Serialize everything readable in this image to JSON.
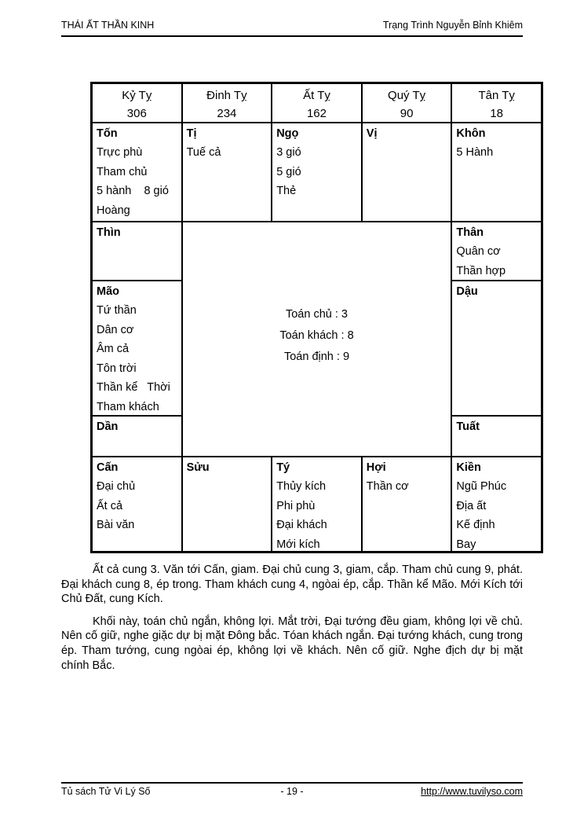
{
  "header": {
    "left": "THÁI ẤT THẦN KINH",
    "right": "Trạng Trình Nguyễn Bỉnh Khiêm"
  },
  "year_row": [
    {
      "name": "Kỷ Tỵ",
      "value": "306"
    },
    {
      "name": "Đinh Tỵ",
      "value": "234"
    },
    {
      "name": "Ất Tỵ",
      "value": "162"
    },
    {
      "name": "Quý Tỵ",
      "value": "90"
    },
    {
      "name": "Tân Tỵ",
      "value": "18"
    }
  ],
  "palaces": {
    "ton": {
      "label": "Tốn",
      "lines": [
        "Trực phù",
        "Tham chủ",
        "5 hành    8 gió",
        "Hoàng"
      ]
    },
    "ti": {
      "label": "Tị",
      "lines": [
        "Tuế cả"
      ]
    },
    "ngo": {
      "label": "Ngọ",
      "lines": [
        "3 gió",
        "5 gió",
        "Thẻ"
      ]
    },
    "vi": {
      "label": "Vị",
      "lines": []
    },
    "khon": {
      "label": "Khôn",
      "lines": [
        "5 Hành"
      ]
    },
    "thin": {
      "label": "Thìn",
      "lines": []
    },
    "than": {
      "label": "Thân",
      "lines": [
        "Quân cơ",
        "Thần hợp"
      ]
    },
    "mao": {
      "label": "Mão",
      "lines": [
        "Tứ thần",
        "Dân cơ",
        "Âm cả",
        "Tôn trời",
        "Thần kể   Thời",
        "Tham khách"
      ]
    },
    "dau": {
      "label": "Dậu",
      "lines": []
    },
    "dan": {
      "label": "Dần",
      "lines": []
    },
    "tuat": {
      "label": "Tuất",
      "lines": []
    },
    "can": {
      "label": "Cấn",
      "lines": [
        "Đại chủ",
        "Ất cả",
        "Bài văn"
      ]
    },
    "suu": {
      "label": "Sửu",
      "lines": []
    },
    "ty": {
      "label": "Tý",
      "lines": [
        "Thủy kích",
        "Phi phù",
        "Đại khách",
        "Mới kích"
      ]
    },
    "hoi": {
      "label": "Hợi",
      "lines": [
        "Thần cơ"
      ]
    },
    "kien": {
      "label": "Kiền",
      "lines": [
        "Ngũ Phúc",
        "Địa ất",
        "Kế định",
        "Bay"
      ]
    }
  },
  "center": {
    "lines": [
      "Toán chủ : 3",
      "Toán khách : 8",
      "Toán định : 9"
    ]
  },
  "paragraphs": [
    "Ất cả cung 3. Văn tới Cấn, giam. Đại chủ cung 3, giam, cắp. Tham chủ cung 9, phát. Đại khách cung 8, ép trong. Tham khách cung 4, ngòai ép, cắp. Thần kể Mão. Mới Kích tới Chủ Đất, cung Kích.",
    "Khối này, toán chủ ngắn, không lợi. Mắt trời, Đại tướng đều giam, không lợi về chủ. Nên cố giữ, nghe giặc dự bị mặt Đông bắc. Tóan khách ngắn. Đại tướng khách, cung trong ép. Tham tướng, cung ngòai ép, không lợi về khách. Nên cố giữ. Nghe địch dự bị mặt chính Bắc."
  ],
  "footer": {
    "left": "Tủ sách Tử Vi Lý Số",
    "center": "- 19 -",
    "right": "http://www.tuvilyso.com"
  },
  "colors": {
    "ink": "#000000",
    "paper": "#ffffff"
  }
}
